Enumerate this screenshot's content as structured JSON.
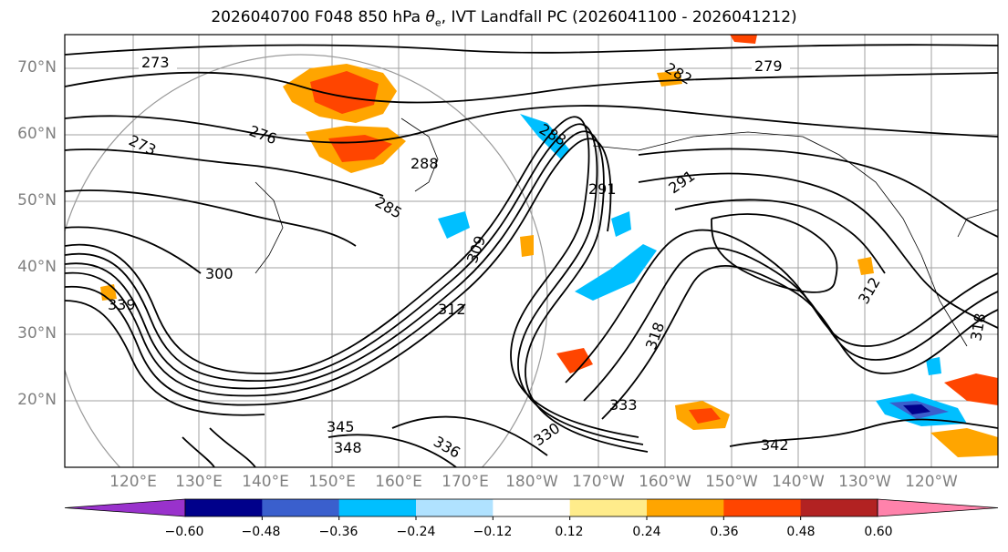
{
  "title_prefix": "2026040700 F048 850 hPa ",
  "title_symbol": "θ",
  "title_subscript": "e",
  "title_suffix": ", IVT Landfall PC (2026041100 - 2026041212)",
  "lat_labels": [
    "70°N",
    "60°N",
    "50°N",
    "40°N",
    "30°N",
    "20°N"
  ],
  "lon_labels": [
    "120°E",
    "130°E",
    "140°E",
    "150°E",
    "160°E",
    "170°E",
    "180°W",
    "170°W",
    "160°W",
    "150°W",
    "140°W",
    "130°W",
    "120°W"
  ],
  "contour_labels": [
    "273",
    "276",
    "273",
    "279",
    "282",
    "288",
    "288",
    "291",
    "291",
    "285",
    "300",
    "309",
    "312",
    "318",
    "312",
    "318",
    "339",
    "333",
    "342",
    "345",
    "348",
    "336",
    "330"
  ],
  "colorbar": {
    "ticks": [
      "−0.60",
      "−0.48",
      "−0.36",
      "−0.24",
      "−0.12",
      "0.12",
      "0.24",
      "0.36",
      "0.48",
      "0.60"
    ],
    "colors": [
      "#9932cc",
      "#00008b",
      "#3a5fcd",
      "#00bfff",
      "#b0e2ff",
      "#ffffff",
      "#ffec8b",
      "#ffa500",
      "#ff4500",
      "#b22222",
      "#ff82ab"
    ]
  },
  "anomaly_colors": {
    "positive_light": "#ffec8b",
    "positive_mid": "#ffa500",
    "positive_strong": "#ff4500",
    "negative_light": "#b0e2ff",
    "negative_mid": "#00bfff",
    "negative_strong": "#3a5fcd",
    "negative_extreme": "#00008b"
  }
}
